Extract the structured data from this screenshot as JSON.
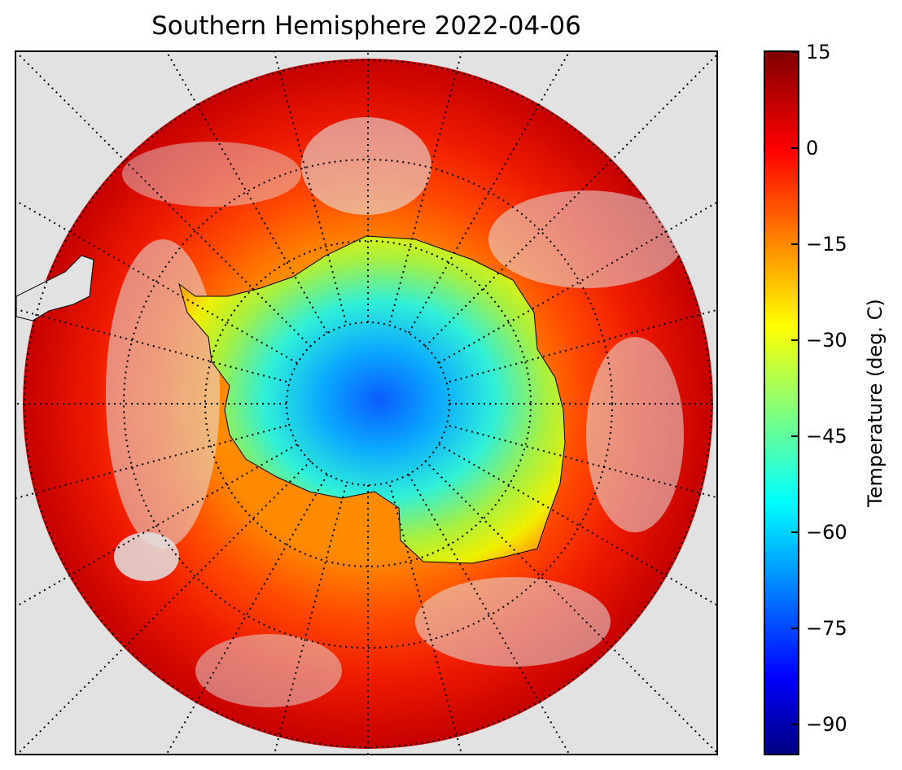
{
  "title": "Southern Hemisphere 2022-04-06",
  "colorbar": {
    "label": "Temperature (deg. C)",
    "ticks": [
      "15",
      "0",
      "−15",
      "−30",
      "−45",
      "−60",
      "−75",
      "−90"
    ],
    "tick_values": [
      15,
      0,
      -15,
      -30,
      -45,
      -60,
      -75,
      -90
    ],
    "range": [
      -95,
      15
    ],
    "colormap": "jet"
  },
  "map": {
    "projection": "south polar stereographic",
    "graticule": "dotted",
    "background_color": "#e2e2e2",
    "coastline_color": "#000000",
    "regions": [
      "Antarctica",
      "Southern Ocean"
    ]
  }
}
